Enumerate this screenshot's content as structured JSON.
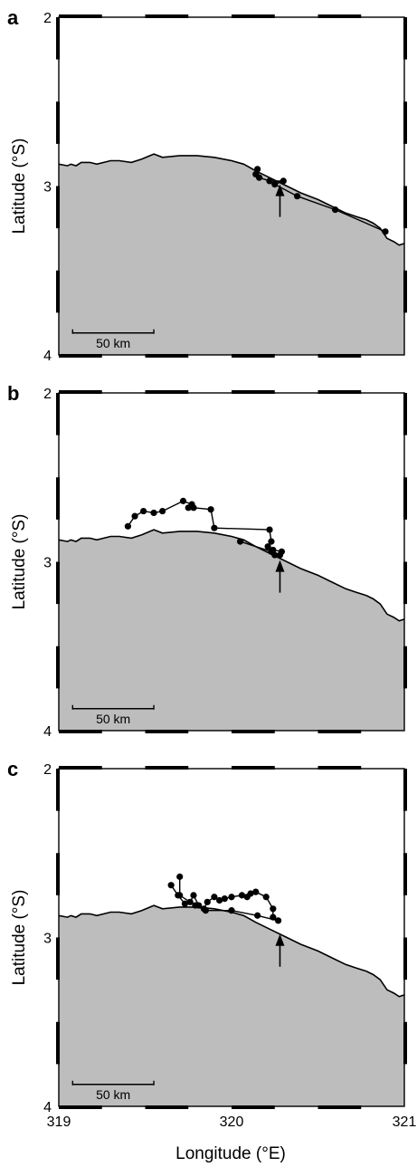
{
  "figure": {
    "xlabel": "Longitude (°E)",
    "ylabel": "Latitude (°S)",
    "scale_bar_label": "50 km",
    "colors": {
      "land": "#bdbdbd",
      "ocean": "#ffffff",
      "track": "#000000"
    }
  },
  "chart_data": [
    {
      "type": "scatter",
      "panel": "a",
      "xlim": [
        319,
        321
      ],
      "ylim": [
        2,
        4
      ],
      "x_ticks": [
        "319",
        "320",
        "321"
      ],
      "y_ticks": [
        "2",
        "3",
        "4"
      ],
      "track": [
        [
          320.14,
          2.93
        ],
        [
          320.15,
          2.9
        ],
        [
          320.16,
          2.95
        ],
        [
          320.22,
          2.97
        ],
        [
          320.3,
          2.97
        ],
        [
          320.25,
          2.99
        ],
        [
          320.38,
          3.06
        ],
        [
          320.6,
          3.14
        ],
        [
          320.89,
          3.27
        ]
      ],
      "release_point": [
        320.28,
        2.99
      ],
      "coastline": [
        [
          319,
          2.87
        ],
        [
          319.05,
          2.88
        ],
        [
          319.07,
          2.87
        ],
        [
          319.1,
          2.88
        ],
        [
          319.13,
          2.86
        ],
        [
          319.18,
          2.86
        ],
        [
          319.22,
          2.87
        ],
        [
          319.3,
          2.85
        ],
        [
          319.35,
          2.85
        ],
        [
          319.42,
          2.86
        ],
        [
          319.48,
          2.84
        ],
        [
          319.55,
          2.81
        ],
        [
          319.6,
          2.83
        ],
        [
          319.7,
          2.82
        ],
        [
          319.8,
          2.82
        ],
        [
          319.9,
          2.83
        ],
        [
          320,
          2.85
        ],
        [
          320.07,
          2.87
        ],
        [
          320.14,
          2.91
        ],
        [
          320.22,
          2.95
        ],
        [
          320.3,
          2.99
        ],
        [
          320.4,
          3.04
        ],
        [
          320.5,
          3.08
        ],
        [
          320.58,
          3.12
        ],
        [
          320.66,
          3.16
        ],
        [
          320.72,
          3.18
        ],
        [
          320.78,
          3.2
        ],
        [
          320.82,
          3.22
        ],
        [
          320.86,
          3.25
        ],
        [
          320.9,
          3.31
        ],
        [
          320.94,
          3.33
        ],
        [
          320.97,
          3.35
        ],
        [
          321,
          3.34
        ]
      ]
    },
    {
      "type": "scatter",
      "panel": "b",
      "xlim": [
        319,
        321
      ],
      "ylim": [
        2,
        4
      ],
      "x_ticks": [
        "319",
        "320",
        "321"
      ],
      "y_ticks": [
        "2",
        "3",
        "4"
      ],
      "track": [
        [
          319.4,
          2.79
        ],
        [
          319.44,
          2.73
        ],
        [
          319.49,
          2.7
        ],
        [
          319.55,
          2.71
        ],
        [
          319.6,
          2.7
        ],
        [
          319.72,
          2.64
        ],
        [
          319.77,
          2.66
        ],
        [
          319.75,
          2.68
        ],
        [
          319.78,
          2.68
        ],
        [
          319.88,
          2.69
        ],
        [
          319.9,
          2.8
        ],
        [
          320.22,
          2.81
        ],
        [
          320.23,
          2.88
        ],
        [
          320.21,
          2.91
        ],
        [
          320.24,
          2.93
        ],
        [
          320.29,
          2.94
        ],
        [
          320.28,
          2.96
        ],
        [
          320.25,
          2.96
        ],
        [
          320.23,
          2.94
        ],
        [
          320.05,
          2.88
        ]
      ],
      "release_point": [
        320.28,
        2.99
      ],
      "coastline": [
        [
          319,
          2.87
        ],
        [
          319.05,
          2.88
        ],
        [
          319.07,
          2.87
        ],
        [
          319.1,
          2.88
        ],
        [
          319.13,
          2.86
        ],
        [
          319.18,
          2.86
        ],
        [
          319.22,
          2.87
        ],
        [
          319.3,
          2.85
        ],
        [
          319.35,
          2.85
        ],
        [
          319.42,
          2.86
        ],
        [
          319.48,
          2.84
        ],
        [
          319.55,
          2.81
        ],
        [
          319.6,
          2.83
        ],
        [
          319.7,
          2.82
        ],
        [
          319.8,
          2.82
        ],
        [
          319.9,
          2.83
        ],
        [
          320,
          2.85
        ],
        [
          320.07,
          2.87
        ],
        [
          320.14,
          2.91
        ],
        [
          320.22,
          2.95
        ],
        [
          320.3,
          2.99
        ],
        [
          320.4,
          3.04
        ],
        [
          320.5,
          3.08
        ],
        [
          320.58,
          3.12
        ],
        [
          320.66,
          3.16
        ],
        [
          320.72,
          3.18
        ],
        [
          320.78,
          3.2
        ],
        [
          320.82,
          3.22
        ],
        [
          320.86,
          3.25
        ],
        [
          320.9,
          3.31
        ],
        [
          320.94,
          3.33
        ],
        [
          320.97,
          3.35
        ],
        [
          321,
          3.34
        ]
      ]
    },
    {
      "type": "scatter",
      "panel": "c",
      "xlim": [
        319,
        321
      ],
      "ylim": [
        2,
        4
      ],
      "x_ticks": [
        "319",
        "320",
        "321"
      ],
      "y_ticks": [
        "2",
        "3",
        "4"
      ],
      "track": [
        [
          319.65,
          2.69
        ],
        [
          319.69,
          2.75
        ],
        [
          319.73,
          2.8
        ],
        [
          319.76,
          2.79
        ],
        [
          319.78,
          2.75
        ],
        [
          319.81,
          2.81
        ],
        [
          319.84,
          2.83
        ],
        [
          319.86,
          2.79
        ],
        [
          319.9,
          2.76
        ],
        [
          319.93,
          2.78
        ],
        [
          319.96,
          2.77
        ],
        [
          320.0,
          2.76
        ],
        [
          320.06,
          2.75
        ],
        [
          320.09,
          2.76
        ],
        [
          320.11,
          2.74
        ],
        [
          320.14,
          2.73
        ],
        [
          320.2,
          2.76
        ],
        [
          320.24,
          2.83
        ],
        [
          320.24,
          2.88
        ],
        [
          320.27,
          2.9
        ],
        [
          320.15,
          2.87
        ],
        [
          320.0,
          2.84
        ],
        [
          319.85,
          2.84
        ],
        [
          319.79,
          2.81
        ],
        [
          319.7,
          2.75
        ],
        [
          319.7,
          2.64
        ]
      ],
      "release_point": [
        320.28,
        2.98
      ],
      "coastline": [
        [
          319,
          2.87
        ],
        [
          319.05,
          2.88
        ],
        [
          319.07,
          2.87
        ],
        [
          319.1,
          2.88
        ],
        [
          319.13,
          2.86
        ],
        [
          319.18,
          2.86
        ],
        [
          319.22,
          2.87
        ],
        [
          319.3,
          2.85
        ],
        [
          319.35,
          2.85
        ],
        [
          319.42,
          2.86
        ],
        [
          319.48,
          2.84
        ],
        [
          319.55,
          2.81
        ],
        [
          319.6,
          2.83
        ],
        [
          319.7,
          2.82
        ],
        [
          319.8,
          2.82
        ],
        [
          319.9,
          2.83
        ],
        [
          320,
          2.85
        ],
        [
          320.07,
          2.87
        ],
        [
          320.14,
          2.91
        ],
        [
          320.22,
          2.95
        ],
        [
          320.3,
          2.99
        ],
        [
          320.4,
          3.04
        ],
        [
          320.5,
          3.08
        ],
        [
          320.58,
          3.12
        ],
        [
          320.66,
          3.16
        ],
        [
          320.72,
          3.18
        ],
        [
          320.78,
          3.2
        ],
        [
          320.82,
          3.22
        ],
        [
          320.86,
          3.25
        ],
        [
          320.9,
          3.31
        ],
        [
          320.94,
          3.33
        ],
        [
          320.97,
          3.35
        ],
        [
          321,
          3.34
        ]
      ]
    }
  ]
}
